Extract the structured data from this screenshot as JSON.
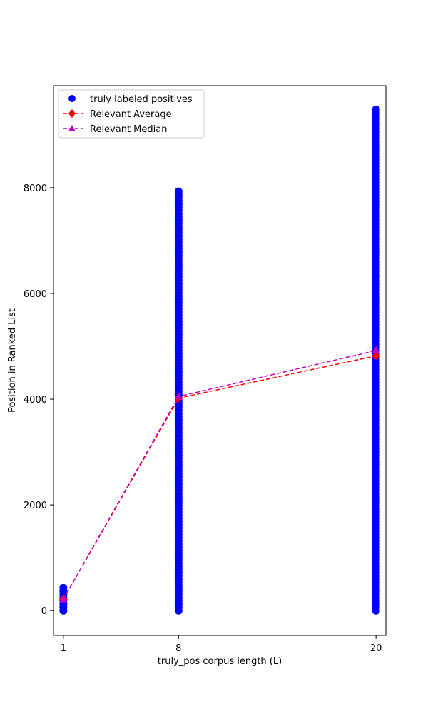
{
  "chart_data": {
    "type": "scatter",
    "xlabel": "truly_pos corpus length (L)",
    "ylabel": "Position in Ranked List",
    "xticks": [
      1,
      8,
      20
    ],
    "yticks": [
      0,
      2000,
      4000,
      6000,
      8000
    ],
    "xlim": [
      0.4,
      20.6
    ],
    "ylim": [
      -470,
      9930
    ],
    "grid": false,
    "legend_position": "upper-left",
    "scatter_series": {
      "name": "truly labeled positives",
      "color": "#0000ff",
      "marker": "circle",
      "columns": [
        {
          "x": 1,
          "y_min": 0,
          "y_max": 430
        },
        {
          "x": 8,
          "y_min": 0,
          "y_max": 7930
        },
        {
          "x": 20,
          "y_min": 0,
          "y_max": 9480
        }
      ]
    },
    "line_series": [
      {
        "name": "Relevant Average",
        "color": "#ff0000",
        "marker": "diamond",
        "linestyle": "dashed",
        "x": [
          1,
          8,
          20
        ],
        "y": [
          215,
          4020,
          4820
        ]
      },
      {
        "name": "Relevant Median",
        "color": "#bf00bf",
        "marker": "triangle",
        "linestyle": "dashed",
        "x": [
          1,
          8,
          20
        ],
        "y": [
          215,
          4050,
          4920
        ]
      }
    ]
  }
}
